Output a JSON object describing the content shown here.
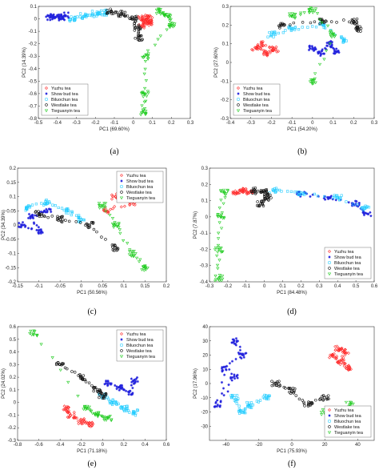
{
  "figure": {
    "colors": {
      "Yuzhu tea": "#ff2a2a",
      "Show bud tea": "#2222dd",
      "Biluochun tea": "#22ccff",
      "Westlake tea": "#111111",
      "Tieguanyin tea": "#22cc22"
    }
  },
  "chart_data": [
    {
      "id": "a",
      "caption": "(a)",
      "type": "scatter",
      "xlabel": "PC1 (69.60%)",
      "ylabel": "PC2 (14.39%)",
      "xlim": [
        -0.5,
        0.3
      ],
      "ylim": [
        -0.8,
        0.1
      ],
      "xticks": [
        "-0.5",
        "-0.4",
        "-0.3",
        "-0.2",
        "-0.1",
        "0",
        "0.1",
        "0.2",
        "0.3"
      ],
      "yticks": [
        "-0.8",
        "-0.7",
        "-0.6",
        "-0.5",
        "-0.4",
        "-0.3",
        "-0.2",
        "-0.1",
        "0",
        "0.1"
      ],
      "legend": {
        "position": "bottom-left",
        "entries": [
          "Yuzhu tea",
          "Show bud tea",
          "Biluochun tea",
          "Westlake tea",
          "Tieguanyin tea"
        ]
      },
      "series": [
        {
          "name": "Yuzhu tea",
          "marker": "diamond",
          "points": [
            [
              0.04,
              0.0
            ],
            [
              0.07,
              -0.02
            ],
            [
              0.05,
              -0.05
            ],
            [
              0.08,
              0.01
            ],
            [
              0.09,
              -0.03
            ]
          ]
        },
        {
          "name": "Show bud tea",
          "marker": "star",
          "points": [
            [
              -0.42,
              0.02
            ],
            [
              -0.38,
              0.0
            ],
            [
              -0.36,
              0.03
            ],
            [
              -0.44,
              0.01
            ]
          ]
        },
        {
          "name": "Biluochun tea",
          "marker": "square",
          "points": [
            [
              -0.32,
              0.0
            ],
            [
              -0.26,
              0.02
            ],
            [
              -0.2,
              0.04
            ],
            [
              -0.15,
              0.05
            ]
          ]
        },
        {
          "name": "Westlake tea",
          "marker": "circle",
          "points": [
            [
              -0.12,
              0.06
            ],
            [
              -0.06,
              0.04
            ],
            [
              0.0,
              0.0
            ],
            [
              0.02,
              -0.07
            ],
            [
              0.03,
              -0.15
            ]
          ]
        },
        {
          "name": "Tieguanyin tea",
          "marker": "triangle",
          "points": [
            [
              0.14,
              0.06
            ],
            [
              0.18,
              0.02
            ],
            [
              0.2,
              -0.05
            ],
            [
              0.06,
              -0.3
            ],
            [
              0.06,
              -0.6
            ],
            [
              0.05,
              -0.75
            ]
          ]
        }
      ]
    },
    {
      "id": "b",
      "caption": "(b)",
      "type": "scatter",
      "xlabel": "PC1 (54.20%)",
      "ylabel": "PC2 (27.60%)",
      "xlim": [
        -0.4,
        0.3
      ],
      "ylim": [
        -0.3,
        0.3
      ],
      "xticks": [
        "-0.4",
        "-0.3",
        "-0.2",
        "-0.1",
        "0",
        "0.1",
        "0.2",
        "0.3"
      ],
      "yticks": [
        "-0.3",
        "-0.2",
        "-0.1",
        "0",
        "0.1",
        "0.2",
        "0.3"
      ],
      "legend": {
        "position": "bottom-left",
        "entries": [
          "Yuzhu tea",
          "Show bud tea",
          "Biluochun tea",
          "Westlake tea",
          "Tieguanyin tea"
        ]
      },
      "series": [
        {
          "name": "Yuzhu tea",
          "marker": "diamond",
          "points": [
            [
              -0.28,
              0.08
            ],
            [
              -0.22,
              0.05
            ],
            [
              -0.18,
              0.07
            ],
            [
              -0.25,
              0.1
            ]
          ]
        },
        {
          "name": "Show bud tea",
          "marker": "star",
          "points": [
            [
              0.0,
              0.08
            ],
            [
              0.04,
              0.05
            ],
            [
              0.08,
              0.1
            ],
            [
              0.12,
              0.06
            ]
          ]
        },
        {
          "name": "Biluochun tea",
          "marker": "square",
          "points": [
            [
              -0.2,
              0.15
            ],
            [
              -0.1,
              0.18
            ],
            [
              0.05,
              0.2
            ],
            [
              0.15,
              0.12
            ]
          ]
        },
        {
          "name": "Westlake tea",
          "marker": "circle",
          "points": [
            [
              -0.15,
              0.2
            ],
            [
              0.05,
              0.22
            ],
            [
              0.2,
              0.22
            ],
            [
              0.22,
              0.18
            ]
          ]
        },
        {
          "name": "Tieguanyin tea",
          "marker": "triangle",
          "points": [
            [
              -0.1,
              0.25
            ],
            [
              0.0,
              0.28
            ],
            [
              0.1,
              0.15
            ],
            [
              0.0,
              -0.1
            ]
          ]
        }
      ]
    },
    {
      "id": "c",
      "caption": "(c)",
      "type": "scatter",
      "xlabel": "PC1 (50.56%)",
      "ylabel": "PC2 (34.39%)",
      "xlim": [
        -0.15,
        0.2
      ],
      "ylim": [
        -0.2,
        0.2
      ],
      "xticks": [
        "-0.15",
        "-0.1",
        "-0.05",
        "0",
        "0.05",
        "0.1",
        "0.15",
        "0.2"
      ],
      "yticks": [
        "-0.2",
        "-0.15",
        "-0.1",
        "-0.05",
        "0",
        "0.05",
        "0.1",
        "0.15",
        "0.2"
      ],
      "legend": {
        "position": "top-right",
        "entries": [
          "Yuzhu tea",
          "Show bud tea",
          "Biluochun tea",
          "Westlake tea",
          "Tieguanyin tea"
        ]
      },
      "series": [
        {
          "name": "Yuzhu tea",
          "marker": "diamond",
          "points": [
            [
              0.08,
              0.1
            ],
            [
              0.1,
              0.12
            ],
            [
              0.12,
              0.08
            ],
            [
              0.06,
              0.05
            ]
          ]
        },
        {
          "name": "Show bud tea",
          "marker": "star",
          "points": [
            [
              -0.14,
              0.0
            ],
            [
              -0.1,
              -0.02
            ],
            [
              -0.12,
              0.03
            ],
            [
              -0.08,
              0.05
            ]
          ]
        },
        {
          "name": "Biluochun tea",
          "marker": "square",
          "points": [
            [
              -0.13,
              0.06
            ],
            [
              -0.08,
              0.08
            ],
            [
              -0.03,
              0.05
            ],
            [
              0.0,
              0.02
            ]
          ]
        },
        {
          "name": "Westlake tea",
          "marker": "circle",
          "points": [
            [
              -0.1,
              0.04
            ],
            [
              -0.05,
              0.02
            ],
            [
              0.02,
              0.0
            ],
            [
              0.08,
              -0.08
            ]
          ]
        },
        {
          "name": "Tieguanyin tea",
          "marker": "triangle",
          "points": [
            [
              0.05,
              0.07
            ],
            [
              0.08,
              0.0
            ],
            [
              0.12,
              -0.1
            ],
            [
              0.15,
              -0.15
            ]
          ]
        }
      ]
    },
    {
      "id": "d",
      "caption": "(d)",
      "type": "scatter",
      "xlabel": "PC1 (84.48%)",
      "ylabel": "PC2 (7.87%)",
      "xlim": [
        -0.3,
        0.6
      ],
      "ylim": [
        -0.4,
        0.3
      ],
      "xticks": [
        "-0.3",
        "-0.2",
        "-0.1",
        "0",
        "0.1",
        "0.2",
        "0.3",
        "0.4",
        "0.5",
        "0.6"
      ],
      "yticks": [
        "-0.4",
        "-0.3",
        "-0.2",
        "-0.1",
        "0",
        "0.1",
        "0.2",
        "0.3"
      ],
      "legend": {
        "position": "bottom-right",
        "entries": [
          "Yuzhu tea",
          "Show bud tea",
          "Biluochun tea",
          "Westlake tea",
          "Tieguanyin tea"
        ]
      },
      "series": [
        {
          "name": "Yuzhu tea",
          "marker": "diamond",
          "points": [
            [
              -0.15,
              0.15
            ],
            [
              -0.12,
              0.16
            ],
            [
              -0.08,
              0.15
            ]
          ]
        },
        {
          "name": "Show bud tea",
          "marker": "star",
          "points": [
            [
              0.2,
              0.14
            ],
            [
              0.35,
              0.12
            ],
            [
              0.5,
              0.08
            ],
            [
              0.56,
              0.02
            ]
          ]
        },
        {
          "name": "Biluochun tea",
          "marker": "square",
          "points": [
            [
              0.05,
              0.16
            ],
            [
              0.2,
              0.15
            ],
            [
              0.4,
              0.12
            ],
            [
              0.55,
              0.05
            ]
          ]
        },
        {
          "name": "Westlake tea",
          "marker": "circle",
          "points": [
            [
              -0.05,
              0.16
            ],
            [
              0.0,
              0.15
            ],
            [
              0.02,
              0.12
            ],
            [
              -0.02,
              0.08
            ]
          ]
        },
        {
          "name": "Tieguanyin tea",
          "marker": "triangle",
          "points": [
            [
              -0.22,
              0.15
            ],
            [
              -0.24,
              0.0
            ],
            [
              -0.25,
              -0.2
            ],
            [
              -0.25,
              -0.38
            ]
          ]
        }
      ]
    },
    {
      "id": "e",
      "caption": "(e)",
      "type": "scatter",
      "xlabel": "PC1 (71.18%)",
      "ylabel": "PC2 (24.02%)",
      "xlim": [
        -0.8,
        0.6
      ],
      "ylim": [
        -0.3,
        0.6
      ],
      "xticks": [
        "-0.8",
        "-0.6",
        "-0.4",
        "-0.2",
        "0",
        "0.2",
        "0.4",
        "0.6"
      ],
      "yticks": [
        "-0.3",
        "-0.2",
        "-0.1",
        "0",
        "0.1",
        "0.2",
        "0.3",
        "0.4",
        "0.5",
        "0.6"
      ],
      "legend": {
        "position": "top-right",
        "entries": [
          "Yuzhu tea",
          "Show bud tea",
          "Biluochun tea",
          "Westlake tea",
          "Tieguanyin tea"
        ]
      },
      "series": [
        {
          "name": "Yuzhu tea",
          "marker": "diamond",
          "points": [
            [
              -0.35,
              -0.05
            ],
            [
              -0.3,
              -0.1
            ],
            [
              -0.2,
              -0.15
            ],
            [
              -0.1,
              -0.18
            ]
          ]
        },
        {
          "name": "Show bud tea",
          "marker": "star",
          "points": [
            [
              0.05,
              0.15
            ],
            [
              0.15,
              0.12
            ],
            [
              0.25,
              0.08
            ],
            [
              0.3,
              0.18
            ]
          ]
        },
        {
          "name": "Biluochun tea",
          "marker": "square",
          "points": [
            [
              0.0,
              0.05
            ],
            [
              0.1,
              0.0
            ],
            [
              0.2,
              -0.05
            ],
            [
              0.3,
              -0.08
            ]
          ]
        },
        {
          "name": "Westlake tea",
          "marker": "circle",
          "points": [
            [
              -0.4,
              0.3
            ],
            [
              -0.2,
              0.2
            ],
            [
              -0.05,
              0.1
            ],
            [
              0.0,
              0.05
            ]
          ]
        },
        {
          "name": "Tieguanyin tea",
          "marker": "triangle",
          "points": [
            [
              -0.65,
              0.55
            ],
            [
              -0.15,
              -0.05
            ],
            [
              -0.05,
              -0.1
            ],
            [
              0.05,
              -0.12
            ]
          ]
        }
      ]
    },
    {
      "id": "f",
      "caption": "(f)",
      "type": "scatter",
      "xlabel": "PC1 (75.93%)",
      "ylabel": "PC2 (17.96%)",
      "xlim": [
        -50,
        50
      ],
      "ylim": [
        -40,
        40
      ],
      "xticks": [
        "-40",
        "-20",
        "0",
        "20",
        "40"
      ],
      "yticks": [
        "-30",
        "-20",
        "-10",
        "0",
        "10",
        "20",
        "30",
        "40"
      ],
      "legend": {
        "position": "bottom-right",
        "entries": [
          "Yuzhu tea",
          "Show bud tea",
          "Biluochun tea",
          "Westlake tea",
          "Tieguanyin tea"
        ]
      },
      "series": [
        {
          "name": "Yuzhu tea",
          "marker": "diamond",
          "points": [
            [
              25,
              20
            ],
            [
              30,
              15
            ],
            [
              35,
              10
            ],
            [
              28,
              25
            ],
            [
              32,
              22
            ]
          ]
        },
        {
          "name": "Show bud tea",
          "marker": "star",
          "points": [
            [
              -35,
              30
            ],
            [
              -30,
              20
            ],
            [
              -40,
              10
            ],
            [
              -45,
              -15
            ],
            [
              -35,
              5
            ]
          ]
        },
        {
          "name": "Biluochun tea",
          "marker": "square",
          "points": [
            [
              -35,
              -10
            ],
            [
              -30,
              -20
            ],
            [
              -25,
              -15
            ],
            [
              -15,
              -10
            ]
          ]
        },
        {
          "name": "Westlake tea",
          "marker": "circle",
          "points": [
            [
              -10,
              0
            ],
            [
              0,
              -5
            ],
            [
              10,
              -15
            ],
            [
              20,
              -10
            ]
          ]
        },
        {
          "name": "Tieguanyin tea",
          "marker": "triangle",
          "points": [
            [
              20,
              -20
            ],
            [
              30,
              -25
            ],
            [
              35,
              -15
            ],
            [
              38,
              -28
            ]
          ]
        }
      ]
    }
  ]
}
